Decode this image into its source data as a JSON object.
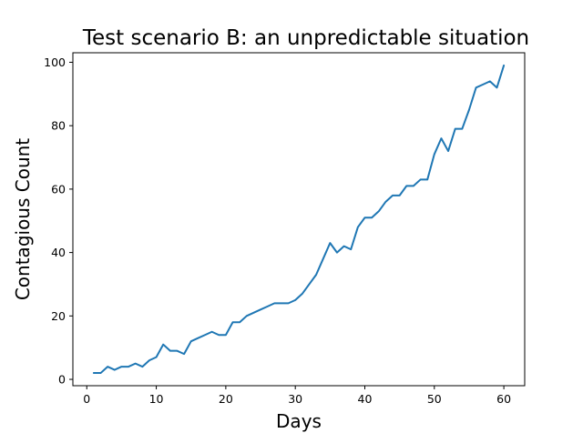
{
  "chart_data": {
    "type": "line",
    "title": "Test scenario B: an unpredictable situation",
    "xlabel": "Days",
    "ylabel": "Contagious Count",
    "xlim": [
      -2,
      63
    ],
    "ylim": [
      -2,
      103
    ],
    "xticks": [
      0,
      10,
      20,
      30,
      40,
      50,
      60
    ],
    "yticks": [
      0,
      20,
      40,
      60,
      80,
      100
    ],
    "grid": false,
    "series": [
      {
        "color": "#1f77b4",
        "x": [
          1,
          2,
          3,
          4,
          5,
          6,
          7,
          8,
          9,
          10,
          11,
          12,
          13,
          14,
          15,
          16,
          17,
          18,
          19,
          20,
          21,
          22,
          23,
          24,
          25,
          26,
          27,
          28,
          29,
          30,
          31,
          32,
          33,
          34,
          35,
          36,
          37,
          38,
          39,
          40,
          41,
          42,
          43,
          44,
          45,
          46,
          47,
          48,
          49,
          50,
          51,
          52,
          53,
          54,
          55,
          56,
          57,
          58,
          59,
          60
        ],
        "y": [
          2,
          2,
          4,
          3,
          4,
          4,
          5,
          4,
          6,
          7,
          11,
          9,
          9,
          8,
          12,
          13,
          14,
          15,
          14,
          14,
          18,
          18,
          20,
          21,
          22,
          23,
          24,
          24,
          24,
          25,
          27,
          30,
          33,
          38,
          43,
          40,
          42,
          41,
          48,
          51,
          51,
          53,
          56,
          58,
          58,
          61,
          61,
          63,
          63,
          71,
          76,
          72,
          79,
          79,
          85,
          92,
          93,
          94,
          92,
          99
        ]
      }
    ]
  }
}
